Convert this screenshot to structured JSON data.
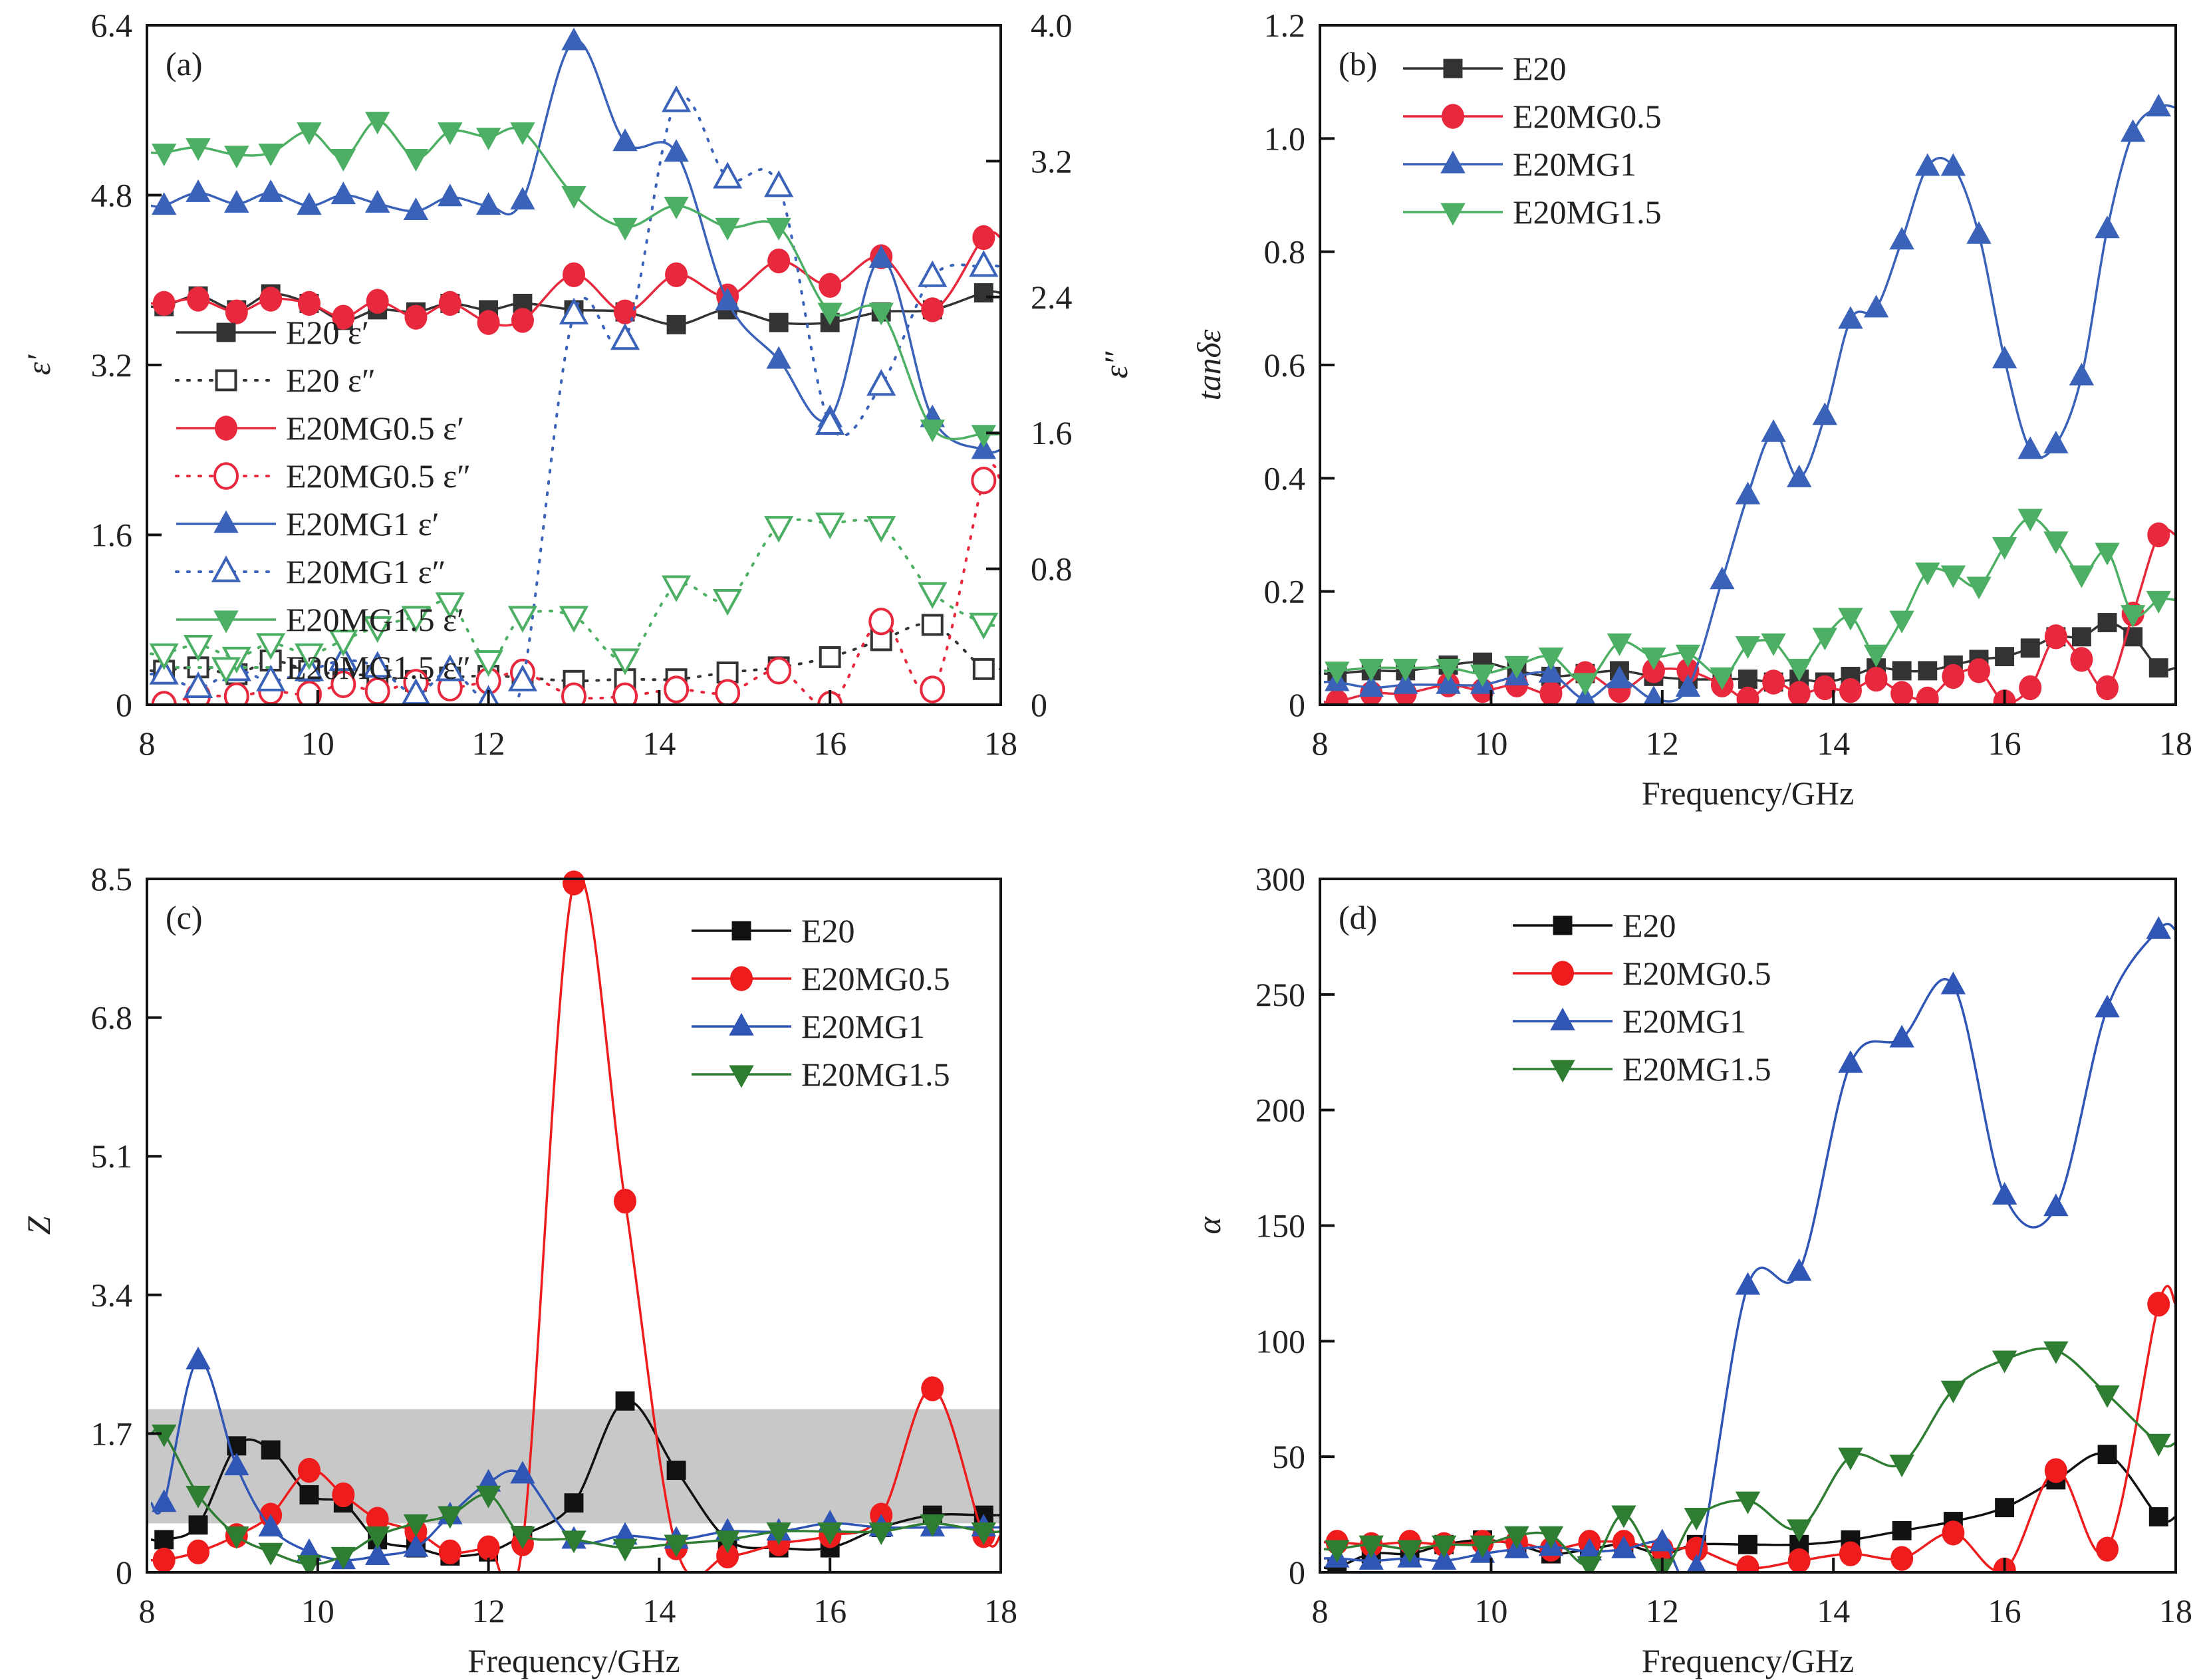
{
  "chart_data": [
    {
      "id": "a",
      "type": "line",
      "panel_label": "(a)",
      "xlabel": "",
      "ylabel": "ε′",
      "ylabel_right": "ε″",
      "xlim": [
        8,
        18
      ],
      "ylim": [
        0,
        6.4
      ],
      "ylim_right": [
        0,
        4.0
      ],
      "xticks": [
        "8",
        "10",
        "12",
        "14",
        "16",
        "18"
      ],
      "yticks": [
        "0",
        "1.6",
        "3.2",
        "4.8",
        "6.4"
      ],
      "yticks_right": [
        "0",
        "0.8",
        "1.6",
        "2.4",
        "3.2",
        "4.0"
      ],
      "legend_position": "left-middle",
      "x": [
        8.2,
        8.6,
        9.05,
        9.45,
        9.9,
        10.3,
        10.7,
        11.15,
        11.55,
        12.0,
        12.4,
        13.0,
        13.6,
        14.2,
        14.8,
        15.4,
        16.0,
        16.6,
        17.2,
        17.8
      ],
      "series": [
        {
          "name": "E20 ε′",
          "axis": "left",
          "style": "solid",
          "marker": "square-filled",
          "color": "#333333",
          "values": [
            3.75,
            3.85,
            3.72,
            3.87,
            3.78,
            3.62,
            3.72,
            3.7,
            3.78,
            3.72,
            3.78,
            3.72,
            3.7,
            3.58,
            3.72,
            3.6,
            3.6,
            3.7,
            3.72,
            3.88
          ]
        },
        {
          "name": "E20 ε″",
          "axis": "right",
          "style": "dotted",
          "marker": "square-open",
          "color": "#333333",
          "values": [
            0.2,
            0.22,
            0.18,
            0.26,
            0.2,
            0.18,
            0.17,
            0.14,
            0.16,
            0.17,
            0.16,
            0.14,
            0.15,
            0.15,
            0.19,
            0.22,
            0.28,
            0.38,
            0.47,
            0.21
          ]
        },
        {
          "name": "E20MG0.5 ε′",
          "axis": "left",
          "style": "solid",
          "marker": "circle-filled",
          "color": "#e8283c",
          "values": [
            3.78,
            3.82,
            3.7,
            3.82,
            3.78,
            3.65,
            3.8,
            3.65,
            3.78,
            3.6,
            3.62,
            4.05,
            3.7,
            4.05,
            3.85,
            4.18,
            3.95,
            4.22,
            3.72,
            4.4
          ]
        },
        {
          "name": "E20MG0.5 ε″",
          "axis": "right",
          "style": "dotted",
          "marker": "circle-open",
          "color": "#e8283c",
          "values": [
            0.0,
            0.05,
            0.05,
            0.08,
            0.06,
            0.12,
            0.08,
            0.13,
            0.1,
            0.14,
            0.19,
            0.05,
            0.05,
            0.09,
            0.07,
            0.2,
            0.0,
            0.49,
            0.09,
            1.32
          ]
        },
        {
          "name": "E20MG1 ε′",
          "axis": "left",
          "style": "solid",
          "marker": "triangle-up-filled",
          "color": "#3a62b8",
          "values": [
            4.7,
            4.82,
            4.72,
            4.82,
            4.7,
            4.8,
            4.72,
            4.65,
            4.78,
            4.7,
            4.75,
            6.25,
            5.3,
            5.2,
            3.8,
            3.25,
            2.7,
            4.2,
            2.7,
            2.4
          ]
        },
        {
          "name": "E20MG1 ε″",
          "axis": "right",
          "style": "dotted",
          "marker": "triangle-up-open",
          "color": "#3a62b8",
          "values": [
            0.18,
            0.1,
            0.2,
            0.14,
            0.2,
            0.26,
            0.22,
            0.06,
            0.2,
            0.02,
            0.14,
            2.3,
            2.15,
            3.55,
            3.1,
            3.05,
            1.65,
            1.88,
            2.52,
            2.58
          ]
        },
        {
          "name": "E20MG1.5 ε′",
          "axis": "left",
          "style": "solid",
          "marker": "triangle-down-filled",
          "color": "#4caf63",
          "values": [
            5.2,
            5.25,
            5.18,
            5.2,
            5.4,
            5.15,
            5.5,
            5.15,
            5.4,
            5.35,
            5.4,
            4.8,
            4.5,
            4.7,
            4.5,
            4.5,
            3.7,
            3.7,
            2.6,
            2.55
          ]
        },
        {
          "name": "E20MG1.5 ε″",
          "axis": "right",
          "style": "dotted",
          "marker": "triangle-down-open",
          "color": "#4caf63",
          "values": [
            0.3,
            0.35,
            0.28,
            0.36,
            0.3,
            0.38,
            0.46,
            0.52,
            0.6,
            0.26,
            0.52,
            0.52,
            0.27,
            0.7,
            0.62,
            1.05,
            1.07,
            1.05,
            0.66,
            0.48
          ]
        }
      ]
    },
    {
      "id": "b",
      "type": "line",
      "panel_label": "(b)",
      "xlabel": "Frequency/GHz",
      "ylabel": "tanδε",
      "xlim": [
        8,
        18
      ],
      "ylim": [
        0,
        1.2
      ],
      "xticks": [
        "8",
        "10",
        "12",
        "14",
        "16",
        "18"
      ],
      "yticks": [
        "0",
        "0.2",
        "0.4",
        "0.6",
        "0.8",
        "1.0",
        "1.2"
      ],
      "legend_position": "top-left",
      "x": [
        8.2,
        8.6,
        9.0,
        9.5,
        9.9,
        10.3,
        10.7,
        11.1,
        11.5,
        11.9,
        12.3,
        12.7,
        13.0,
        13.3,
        13.6,
        13.9,
        14.2,
        14.5,
        14.8,
        15.1,
        15.4,
        15.7,
        16.0,
        16.3,
        16.6,
        16.9,
        17.2,
        17.5,
        17.8
      ],
      "series": [
        {
          "name": "E20",
          "marker": "square-filled",
          "color": "#333333",
          "values": [
            0.055,
            0.06,
            0.06,
            0.07,
            0.075,
            0.06,
            0.05,
            0.055,
            0.06,
            0.05,
            0.045,
            0.045,
            0.045,
            0.04,
            0.045,
            0.04,
            0.05,
            0.065,
            0.06,
            0.06,
            0.07,
            0.08,
            0.085,
            0.1,
            0.12,
            0.12,
            0.145,
            0.12,
            0.065
          ]
        },
        {
          "name": "E20MG0.5",
          "marker": "circle-filled",
          "color": "#e8283c",
          "values": [
            0.005,
            0.02,
            0.02,
            0.035,
            0.025,
            0.035,
            0.02,
            0.055,
            0.025,
            0.06,
            0.06,
            0.035,
            0.01,
            0.04,
            0.02,
            0.03,
            0.025,
            0.045,
            0.02,
            0.01,
            0.05,
            0.06,
            0.005,
            0.03,
            0.12,
            0.08,
            0.03,
            0.16,
            0.3
          ]
        },
        {
          "name": "E20MG1",
          "marker": "triangle-up-filled",
          "color": "#3a62b8",
          "values": [
            0.04,
            0.03,
            0.035,
            0.035,
            0.035,
            0.05,
            0.055,
            0.01,
            0.045,
            0.01,
            0.03,
            0.22,
            0.37,
            0.48,
            0.4,
            0.51,
            0.68,
            0.7,
            0.82,
            0.95,
            0.95,
            0.83,
            0.61,
            0.45,
            0.46,
            0.58,
            0.84,
            1.01,
            1.055
          ]
        },
        {
          "name": "E20MG1.5",
          "marker": "triangle-down-filled",
          "color": "#4caf63",
          "values": [
            0.06,
            0.065,
            0.065,
            0.065,
            0.055,
            0.07,
            0.085,
            0.04,
            0.11,
            0.085,
            0.09,
            0.05,
            0.105,
            0.11,
            0.065,
            0.12,
            0.155,
            0.09,
            0.15,
            0.235,
            0.23,
            0.21,
            0.28,
            0.33,
            0.29,
            0.23,
            0.27,
            0.16,
            0.185
          ]
        }
      ]
    },
    {
      "id": "c",
      "type": "line",
      "panel_label": "(c)",
      "xlabel": "Frequency/GHz",
      "ylabel": "Z",
      "xlim": [
        8,
        18
      ],
      "ylim": [
        0,
        8.5
      ],
      "xticks": [
        "8",
        "10",
        "12",
        "14",
        "16",
        "18"
      ],
      "yticks": [
        "0",
        "1.7",
        "3.4",
        "5.1",
        "6.8",
        "8.5"
      ],
      "shaded_band": [
        0.6,
        2.0
      ],
      "legend_position": "top-right",
      "x": [
        8.2,
        8.6,
        9.05,
        9.45,
        9.9,
        10.3,
        10.7,
        11.15,
        11.55,
        12.0,
        12.4,
        13.0,
        13.6,
        14.2,
        14.8,
        15.4,
        16.0,
        16.6,
        17.2,
        17.8
      ],
      "series": [
        {
          "name": "E20",
          "marker": "square-filled",
          "color": "#111111",
          "values": [
            0.4,
            0.58,
            1.55,
            1.5,
            0.95,
            0.85,
            0.4,
            0.3,
            0.2,
            0.25,
            0.45,
            0.85,
            2.1,
            1.25,
            0.4,
            0.3,
            0.3,
            0.55,
            0.7,
            0.7
          ]
        },
        {
          "name": "E20MG0.5",
          "marker": "circle-filled",
          "color": "#ee1c1c",
          "values": [
            0.15,
            0.25,
            0.45,
            0.7,
            1.25,
            0.95,
            0.65,
            0.5,
            0.25,
            0.3,
            0.35,
            8.45,
            4.55,
            0.3,
            0.2,
            0.35,
            0.45,
            0.7,
            2.25,
            0.45
          ]
        },
        {
          "name": "E20MG1",
          "marker": "triangle-up-filled",
          "color": "#2f55b5",
          "values": [
            0.85,
            2.6,
            1.3,
            0.55,
            0.25,
            0.15,
            0.2,
            0.3,
            0.7,
            1.1,
            1.2,
            0.4,
            0.45,
            0.4,
            0.5,
            0.5,
            0.6,
            0.55,
            0.55,
            0.55
          ]
        },
        {
          "name": "E20MG1.5",
          "marker": "triangle-down-filled",
          "color": "#2e7d32",
          "values": [
            1.7,
            0.95,
            0.45,
            0.25,
            0.1,
            0.2,
            0.45,
            0.6,
            0.7,
            0.95,
            0.45,
            0.4,
            0.3,
            0.35,
            0.4,
            0.5,
            0.5,
            0.5,
            0.6,
            0.5
          ]
        }
      ]
    },
    {
      "id": "d",
      "type": "line",
      "panel_label": "(d)",
      "xlabel": "Frequency/GHz",
      "ylabel": "α",
      "xlim": [
        8,
        18
      ],
      "ylim": [
        0,
        300
      ],
      "xticks": [
        "8",
        "10",
        "12",
        "14",
        "16",
        "18"
      ],
      "yticks": [
        "0",
        "50",
        "100",
        "150",
        "200",
        "250",
        "300"
      ],
      "legend_position": "top-left",
      "x": [
        8.2,
        8.6,
        9.05,
        9.45,
        9.9,
        10.3,
        10.7,
        11.15,
        11.55,
        12.0,
        12.4,
        13.0,
        13.6,
        14.2,
        14.8,
        15.4,
        16.0,
        16.6,
        17.2,
        17.8
      ],
      "series": [
        {
          "name": "E20",
          "marker": "square-filled",
          "color": "#111111",
          "values": [
            2,
            8,
            8,
            12,
            14,
            12,
            8,
            10,
            12,
            8,
            12,
            12,
            12,
            14,
            18,
            22,
            28,
            40,
            51,
            24
          ]
        },
        {
          "name": "E20MG0.5",
          "marker": "circle-filled",
          "color": "#ee1c1c",
          "values": [
            13,
            12,
            13,
            12,
            13,
            13,
            10,
            13,
            13,
            10,
            10,
            2,
            5,
            8,
            6,
            17,
            1,
            44,
            10,
            116
          ]
        },
        {
          "name": "E20MG1",
          "marker": "triangle-up-filled",
          "color": "#2f55b5",
          "values": [
            6,
            5,
            6,
            5,
            8,
            10,
            11,
            9,
            10,
            13,
            2,
            124,
            130,
            220,
            231,
            254,
            163,
            158,
            244,
            278
          ]
        },
        {
          "name": "E20MG1.5",
          "marker": "triangle-down-filled",
          "color": "#2e7d32",
          "values": [
            10,
            12,
            10,
            12,
            12,
            16,
            16,
            3,
            25,
            2,
            24,
            31,
            19,
            50,
            47,
            79,
            92,
            96,
            77,
            56
          ]
        }
      ]
    }
  ]
}
